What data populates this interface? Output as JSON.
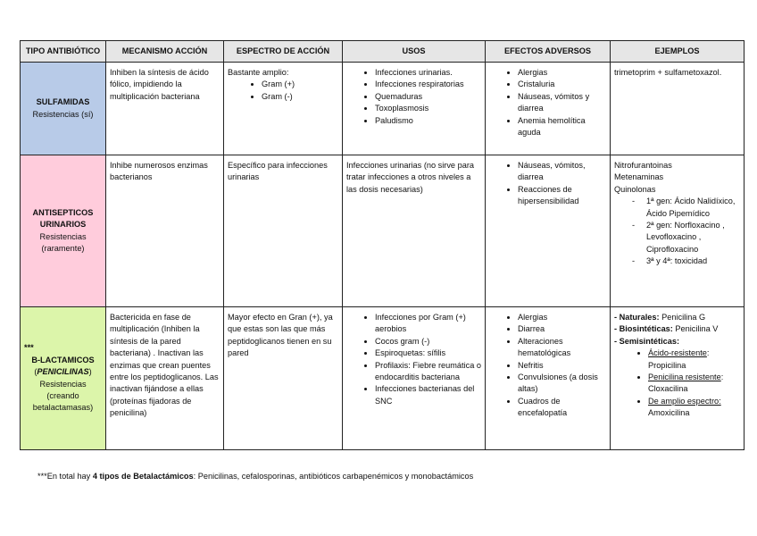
{
  "colors": {
    "header": "#e6e6e6",
    "sulfamidas": "#b8cbe8",
    "antisepticos": "#ffccdc",
    "betalactamicos": "#dcf5aa"
  },
  "headers": [
    "TIPO ANTIBIÓTICO",
    "MECANISMO ACCIÓN",
    "ESPECTRO DE ACCIÓN",
    "USOS",
    "EFECTOS ADVERSOS",
    "EJEMPLOS"
  ],
  "rows": [
    {
      "name": "SULFAMIDAS",
      "sub": "Resistencias (sí)",
      "mecanismo": "Inhiben la síntesis de ácido fólico, impidiendo la multiplicación bacteriana",
      "espectro_intro": "Bastante amplio:",
      "espectro_items": [
        "Gram (+)",
        "Gram (-)"
      ],
      "usos": [
        "Infecciones urinarias.",
        "Infecciones respiratorias",
        "Quemaduras",
        "Toxoplasmosis",
        "Paludismo"
      ],
      "efectos": [
        "Alergias",
        "Cristaluria",
        "Náuseas, vómitos y diarrea",
        "Anemia hemolítica aguda"
      ],
      "ejemplos": "trimetoprim + sulfametoxazol."
    },
    {
      "name": "ANTISEPTICOS URINARIOS",
      "sub": "Resistencias (raramente)",
      "mecanismo": "Inhibe numerosos enzimas bacterianos",
      "espectro": "Específico para infecciones urinarias",
      "usos": "Infecciones urinarias (no sirve para tratar infecciones a otros niveles a las dosis necesarias)",
      "efectos": [
        "Náuseas, vómitos, diarrea",
        "Reacciones de hipersensibilidad"
      ],
      "ejemplos_lines": [
        "Nitrofurantoinas",
        "Metenaminas",
        "Quinolonas"
      ],
      "ejemplos_sub": [
        "1ª gen: Ácido Nalidíxico, Ácido Pipemídico",
        "2ª gen: Norfloxacino , Levofloxacino , Ciprofloxacino",
        "3ª y 4ª: toxicidad"
      ]
    },
    {
      "stars": "***",
      "name": "B-LACTAMICOS",
      "name2": "PENICILINAS",
      "sub": "Resistencias (creando betalactamasas)",
      "mecanismo": "Bactericida en fase de multiplicación (Inhiben la síntesis de la pared bacteriana) . Inactivan las enzimas que crean puentes entre los peptidoglicanos. Las inactivan fijándose a ellas (proteínas fijadoras de penicilina)",
      "espectro": "Mayor efecto en Gran (+), ya que estas son las que más peptidoglicanos tienen en su pared",
      "usos": [
        "Infecciones por Gram (+) aerobios",
        "Cocos gram (-)",
        "Espiroquetas: sífilis",
        "Profilaxis: Fiebre reumática o endocarditis bacteriana",
        "Infecciones bacterianas del SNC"
      ],
      "efectos": [
        "Alergias",
        "Diarrea",
        "Alteraciones hematológicas",
        "Nefritis",
        "Convulsiones (a dosis altas)",
        "Cuadros de encefalopatía"
      ],
      "ejemplos_lines": [
        {
          "bold": "- Naturales:",
          "text": " Penicilina G"
        },
        {
          "bold": "- Biosintéticas:",
          "text": " Penicilina V"
        },
        {
          "bold": "- Semisintéticas:",
          "text": ""
        }
      ],
      "ejemplos_sub": [
        {
          "u": "Ácido-resistente",
          "text": ": Propicilina"
        },
        {
          "u": "Penicilina resistente",
          "text": ": Cloxacilina"
        },
        {
          "u": "De amplio espectro:",
          "text": " Amoxicilina"
        }
      ]
    }
  ],
  "footnote": {
    "stars": "***",
    "pre": "En total hay ",
    "bold": "4 tipos de Betalactámicos",
    "post": ": Penicilinas, cefalosporinas, antibióticos carbapenémicos y monobactámicos"
  }
}
